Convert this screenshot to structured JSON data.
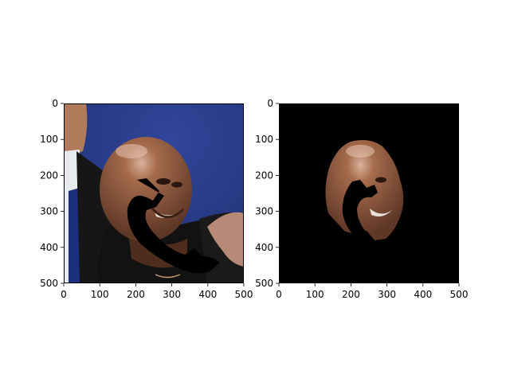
{
  "figure": {
    "background": "#ffffff",
    "panels": [
      {
        "name": "original-photo",
        "content": "photo",
        "xlim": [
          0,
          500
        ],
        "ylim": [
          500,
          0
        ],
        "x_ticks": [
          0,
          100,
          200,
          300,
          400,
          500
        ],
        "y_ticks": [
          0,
          100,
          200,
          300,
          400,
          500
        ],
        "x_tick_labels": [
          "0",
          "100",
          "200",
          "300",
          "400",
          "500"
        ],
        "y_tick_labels": [
          "0",
          "100",
          "200",
          "300",
          "400",
          "500"
        ]
      },
      {
        "name": "masked-face",
        "content": "face-mask",
        "xlim": [
          0,
          500
        ],
        "ylim": [
          500,
          0
        ],
        "x_ticks": [
          0,
          100,
          200,
          300,
          400,
          500
        ],
        "y_ticks": [
          0,
          100,
          200,
          300,
          400,
          500
        ],
        "x_tick_labels": [
          "0",
          "100",
          "200",
          "300",
          "400",
          "500"
        ],
        "y_tick_labels": [
          "0",
          "100",
          "200",
          "300",
          "400",
          "500"
        ]
      }
    ],
    "colors": {
      "backdrop_blue": "#2c3f8c",
      "suit_dark": "#161616",
      "shirt_white": "#e7eaef",
      "tie_blue": "#1c2f7e",
      "skin": "#8f5a3f",
      "skin_shadow": "#5e3726",
      "scalp_highlight": "#d9b19a",
      "mask_black": "#000000"
    }
  }
}
